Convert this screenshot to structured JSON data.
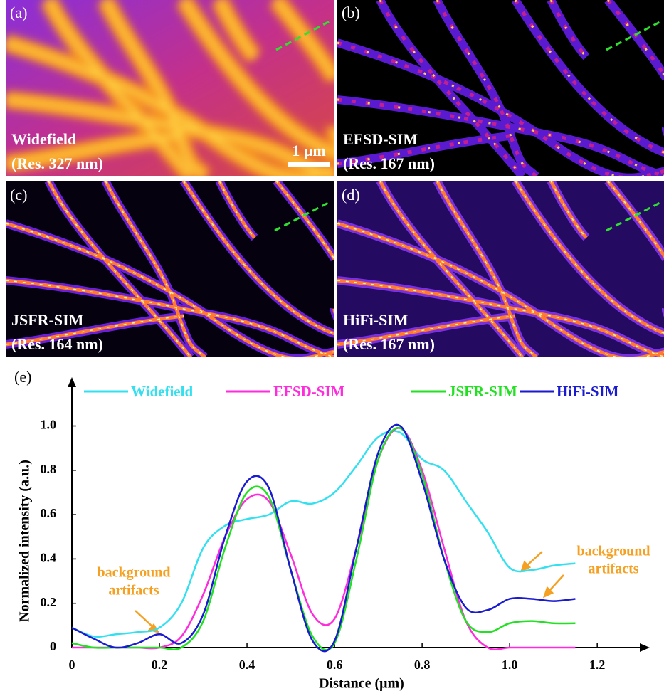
{
  "panels": [
    {
      "label": "(a)",
      "name": "Widefield",
      "resolution": "(Res. 327 nm)"
    },
    {
      "label": "(b)",
      "name": "EFSD-SIM",
      "resolution": "(Res. 167 nm)"
    },
    {
      "label": "(c)",
      "name": "JSFR-SIM",
      "resolution": "(Res. 164 nm)"
    },
    {
      "label": "(d)",
      "name": "HiFi-SIM",
      "resolution": "(Res. 167 nm)"
    }
  ],
  "scale_bar": "1 μm",
  "chart_data": {
    "type": "line",
    "label": "(e)",
    "x_label": "Distance (μm)",
    "y_label": "Normalized  intensity (a.u.)",
    "x": [
      0,
      0.05,
      0.1,
      0.15,
      0.2,
      0.25,
      0.3,
      0.35,
      0.4,
      0.45,
      0.5,
      0.55,
      0.6,
      0.65,
      0.7,
      0.75,
      0.8,
      0.85,
      0.9,
      0.95,
      1.0,
      1.05,
      1.1,
      1.15
    ],
    "series": [
      {
        "name": "Widefield",
        "color": "#33e0f0",
        "values": [
          0.09,
          0.05,
          0.06,
          0.07,
          0.09,
          0.2,
          0.45,
          0.55,
          0.58,
          0.6,
          0.66,
          0.65,
          0.7,
          0.82,
          0.95,
          0.97,
          0.85,
          0.8,
          0.66,
          0.52,
          0.36,
          0.35,
          0.37,
          0.38
        ]
      },
      {
        "name": "EFSD-SIM",
        "color": "#ff2bdc",
        "values": [
          0,
          0,
          0,
          0,
          0,
          0.05,
          0.24,
          0.5,
          0.67,
          0.66,
          0.42,
          0.15,
          0.13,
          0.45,
          0.85,
          0.99,
          0.8,
          0.45,
          0.12,
          0,
          0,
          0,
          0,
          0
        ]
      },
      {
        "name": "JSFR-SIM",
        "color": "#22e022",
        "values": [
          0.02,
          0,
          0,
          0,
          0,
          0,
          0.12,
          0.45,
          0.7,
          0.68,
          0.35,
          0.05,
          0.02,
          0.4,
          0.85,
          0.99,
          0.78,
          0.4,
          0.12,
          0.07,
          0.11,
          0.12,
          0.11,
          0.11
        ]
      },
      {
        "name": "HiFi-SIM",
        "color": "#1a1ad0",
        "values": [
          0.09,
          0.04,
          0,
          0.02,
          0.06,
          0.02,
          0.15,
          0.5,
          0.75,
          0.72,
          0.35,
          0.03,
          0.03,
          0.45,
          0.88,
          1.0,
          0.75,
          0.4,
          0.18,
          0.17,
          0.22,
          0.22,
          0.21,
          0.22
        ]
      }
    ],
    "xlim": [
      0,
      1.32
    ],
    "ylim": [
      0,
      1.22
    ],
    "xticks": [
      0,
      0.2,
      0.4,
      0.6,
      0.8,
      {
        "value": 1,
        "label": "1.0"
      },
      1.2
    ],
    "yticks": [
      0,
      0.2,
      0.4,
      0.6,
      0.8,
      {
        "value": 1,
        "label": "1.0"
      }
    ],
    "legend": "top",
    "annotations": [
      {
        "text": [
          "background",
          "artifacts"
        ],
        "color": "#f5a020"
      },
      {
        "text": [
          "background",
          "artifacts"
        ],
        "color": "#f5a020"
      }
    ]
  }
}
